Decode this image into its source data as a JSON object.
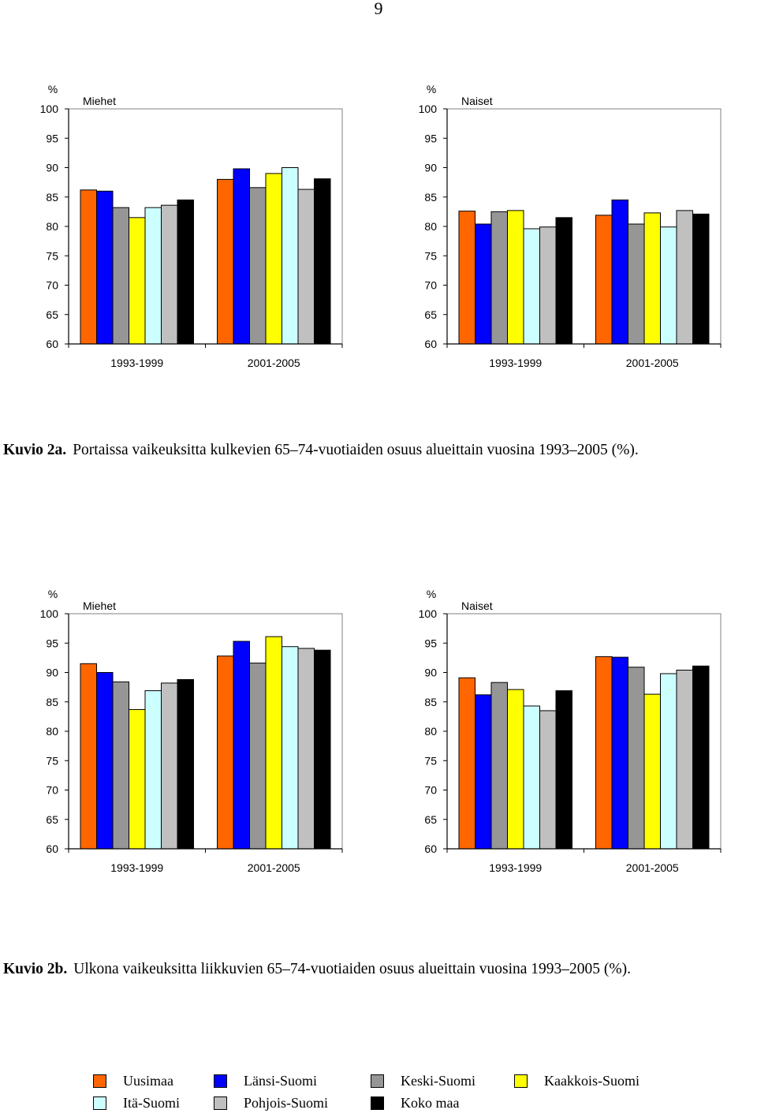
{
  "page_number": "9",
  "colors": {
    "Uusimaa": "#ff6600",
    "Länsi-Suomi": "#0000ff",
    "Keski-Suomi": "#969696",
    "Kaakkois-Suomi": "#ffff00",
    "Itä-Suomi": "#ccffff",
    "Pohjois-Suomi": "#c0c0c0",
    "Koko maa": "#000000"
  },
  "legend": {
    "items": [
      "Uusimaa",
      "Länsi-Suomi",
      "Keski-Suomi",
      "Kaakkois-Suomi",
      "Itä-Suomi",
      "Pohjois-Suomi",
      "Koko maa"
    ]
  },
  "figures": [
    {
      "caption_label": "Kuvio 2a.",
      "caption_text": "Portaissa vaikeuksitta kulkevien 65–74-vuotiaiden osuus alueittain vuosina 1993–2005 (%).",
      "charts": [
        {
          "chart_id": "2a-miehet",
          "title": "Miehet"
        },
        {
          "chart_id": "2a-naiset",
          "title": "Naiset"
        }
      ]
    },
    {
      "caption_label": "Kuvio 2b.",
      "caption_text": "Ulkona vaikeuksitta liikkuvien 65–74-vuotiaiden osuus alueittain vuosina 1993–2005 (%).",
      "charts": [
        {
          "chart_id": "2b-miehet",
          "title": "Miehet"
        },
        {
          "chart_id": "2b-naiset",
          "title": "Naiset"
        }
      ]
    }
  ],
  "chart_data": [
    {
      "id": "2a-miehet",
      "type": "bar",
      "title": "Miehet",
      "ylabel": "%",
      "ylim": [
        60,
        100
      ],
      "yticks": [
        60,
        65,
        70,
        75,
        80,
        85,
        90,
        95,
        100
      ],
      "grid": false,
      "legend": "bottom",
      "categories": [
        "1993-1999",
        "2001-2005"
      ],
      "series": [
        {
          "name": "Uusimaa",
          "values": [
            86.2,
            88.0
          ]
        },
        {
          "name": "Länsi-Suomi",
          "values": [
            86.0,
            89.8
          ]
        },
        {
          "name": "Keski-Suomi",
          "values": [
            83.2,
            86.6
          ]
        },
        {
          "name": "Kaakkois-Suomi",
          "values": [
            81.5,
            89.0
          ]
        },
        {
          "name": "Itä-Suomi",
          "values": [
            83.2,
            90.0
          ]
        },
        {
          "name": "Pohjois-Suomi",
          "values": [
            83.6,
            86.3
          ]
        },
        {
          "name": "Koko maa",
          "values": [
            84.5,
            88.1
          ]
        }
      ]
    },
    {
      "id": "2a-naiset",
      "type": "bar",
      "title": "Naiset",
      "ylabel": "%",
      "ylim": [
        60,
        100
      ],
      "yticks": [
        60,
        65,
        70,
        75,
        80,
        85,
        90,
        95,
        100
      ],
      "grid": false,
      "legend": "bottom",
      "categories": [
        "1993-1999",
        "2001-2005"
      ],
      "series": [
        {
          "name": "Uusimaa",
          "values": [
            82.6,
            81.9
          ]
        },
        {
          "name": "Länsi-Suomi",
          "values": [
            80.4,
            84.5
          ]
        },
        {
          "name": "Keski-Suomi",
          "values": [
            82.5,
            80.4
          ]
        },
        {
          "name": "Kaakkois-Suomi",
          "values": [
            82.7,
            82.3
          ]
        },
        {
          "name": "Itä-Suomi",
          "values": [
            79.6,
            79.9
          ]
        },
        {
          "name": "Pohjois-Suomi",
          "values": [
            79.9,
            82.7
          ]
        },
        {
          "name": "Koko maa",
          "values": [
            81.5,
            82.1
          ]
        }
      ]
    },
    {
      "id": "2b-miehet",
      "type": "bar",
      "title": "Miehet",
      "ylabel": "%",
      "ylim": [
        60,
        100
      ],
      "yticks": [
        60,
        65,
        70,
        75,
        80,
        85,
        90,
        95,
        100
      ],
      "grid": false,
      "legend": "bottom",
      "categories": [
        "1993-1999",
        "2001-2005"
      ],
      "series": [
        {
          "name": "Uusimaa",
          "values": [
            91.5,
            92.8
          ]
        },
        {
          "name": "Länsi-Suomi",
          "values": [
            90.0,
            95.3
          ]
        },
        {
          "name": "Keski-Suomi",
          "values": [
            88.4,
            91.6
          ]
        },
        {
          "name": "Kaakkois-Suomi",
          "values": [
            83.7,
            96.1
          ]
        },
        {
          "name": "Itä-Suomi",
          "values": [
            86.9,
            94.4
          ]
        },
        {
          "name": "Pohjois-Suomi",
          "values": [
            88.2,
            94.1
          ]
        },
        {
          "name": "Koko maa",
          "values": [
            88.8,
            93.8
          ]
        }
      ]
    },
    {
      "id": "2b-naiset",
      "type": "bar",
      "title": "Naiset",
      "ylabel": "%",
      "ylim": [
        60,
        100
      ],
      "yticks": [
        60,
        65,
        70,
        75,
        80,
        85,
        90,
        95,
        100
      ],
      "grid": false,
      "legend": "bottom",
      "categories": [
        "1993-1999",
        "2001-2005"
      ],
      "series": [
        {
          "name": "Uusimaa",
          "values": [
            89.1,
            92.7
          ]
        },
        {
          "name": "Länsi-Suomi",
          "values": [
            86.2,
            92.6
          ]
        },
        {
          "name": "Keski-Suomi",
          "values": [
            88.3,
            90.9
          ]
        },
        {
          "name": "Kaakkois-Suomi",
          "values": [
            87.1,
            86.3
          ]
        },
        {
          "name": "Itä-Suomi",
          "values": [
            84.3,
            89.8
          ]
        },
        {
          "name": "Pohjois-Suomi",
          "values": [
            83.5,
            90.4
          ]
        },
        {
          "name": "Koko maa",
          "values": [
            86.9,
            91.1
          ]
        }
      ]
    }
  ]
}
